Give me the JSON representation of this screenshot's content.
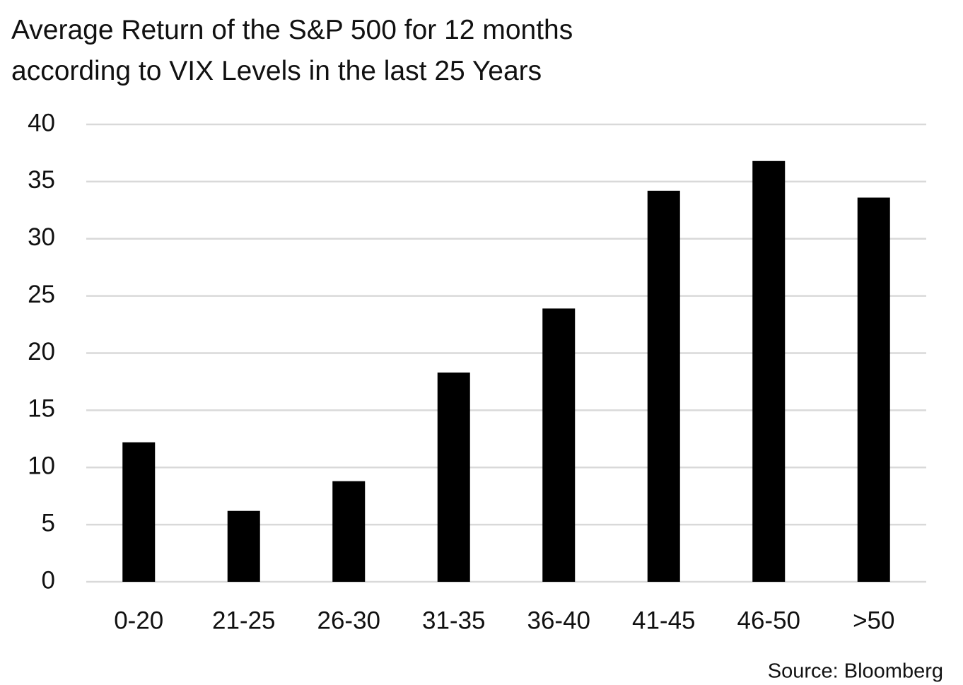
{
  "chart_data": {
    "type": "bar",
    "title": "Average Return of the S&P 500 for 12 months according to VIX Levels in the last 25 Years",
    "categories": [
      "0-20",
      "21-25",
      "26-30",
      "31-35",
      "36-40",
      "41-45",
      "46-50",
      ">50"
    ],
    "values": [
      12.2,
      6.2,
      8.8,
      18.3,
      23.9,
      34.2,
      36.8,
      33.6
    ],
    "color": "#000000",
    "ylim": [
      0,
      40
    ],
    "yticks": [
      0,
      5,
      10,
      15,
      20,
      25,
      30,
      35,
      40
    ],
    "grid": true,
    "source": "Source: Bloomberg"
  }
}
